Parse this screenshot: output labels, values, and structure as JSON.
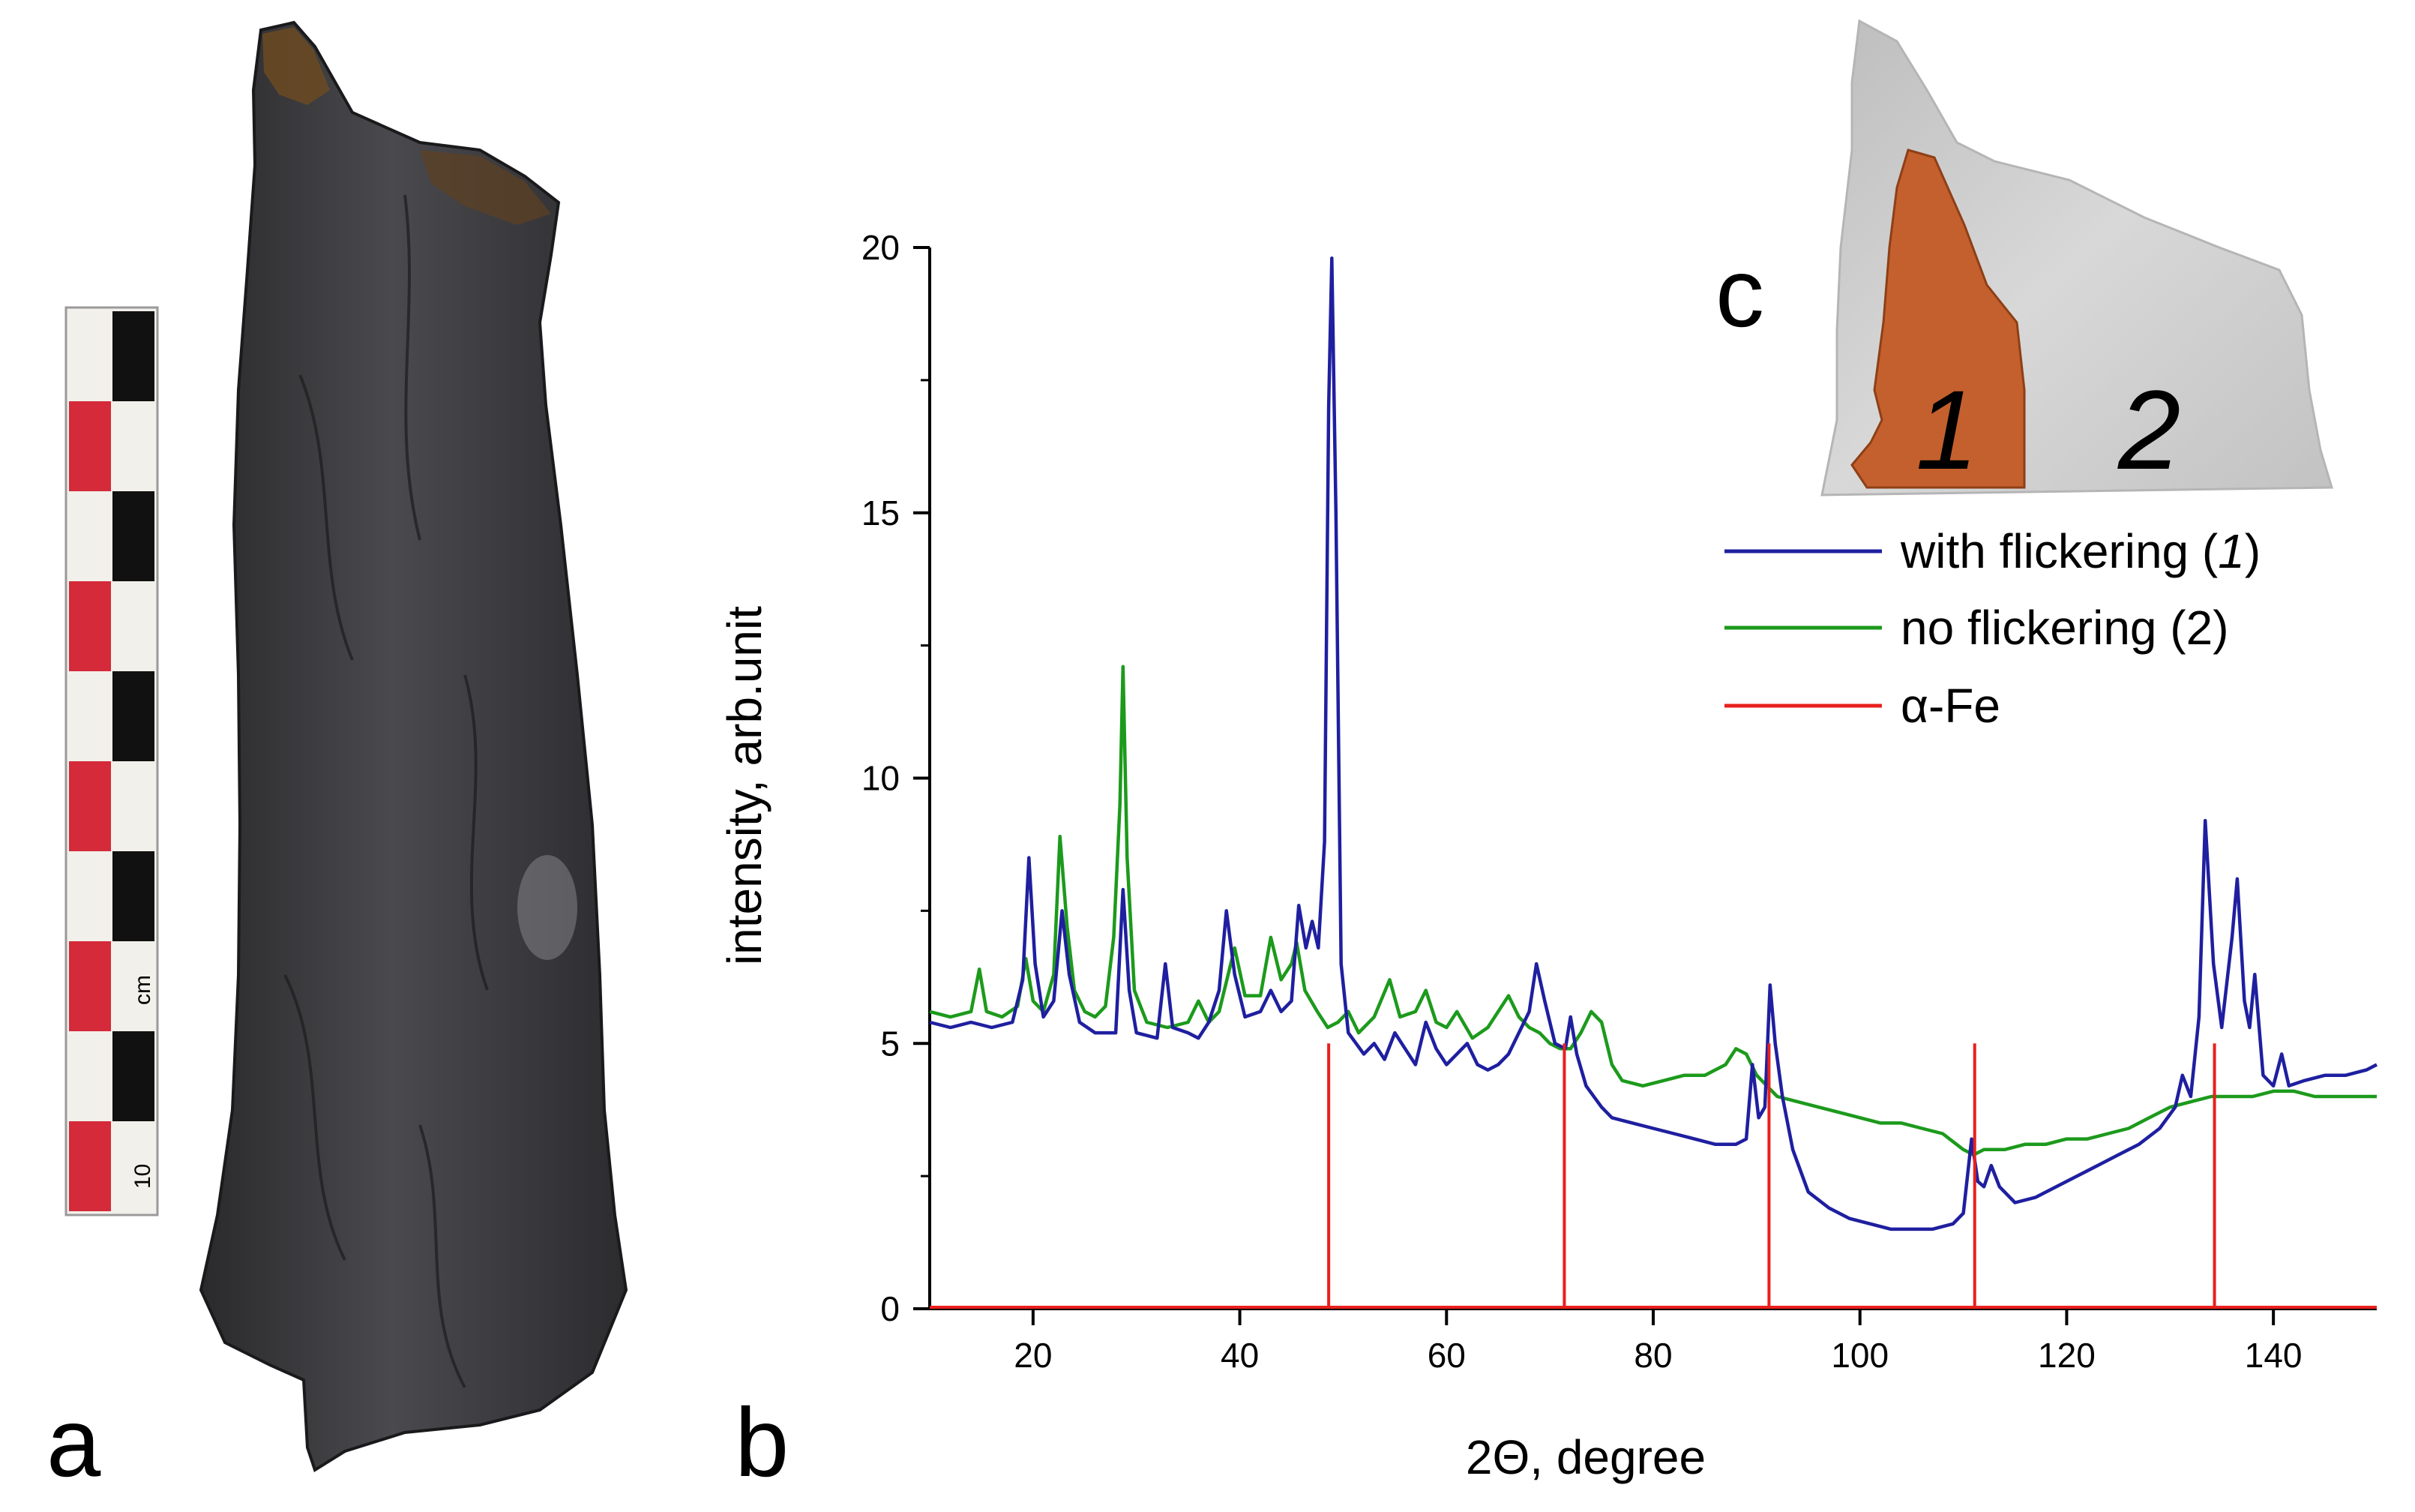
{
  "panels": {
    "a": "a",
    "b": "b",
    "c": "c"
  },
  "ruler": {
    "unit": "cm",
    "mark": "10"
  },
  "inset": {
    "region_1": "1",
    "region_2": "2",
    "region_1_color": "#c4602e",
    "region_2_color": "#c9c9c9"
  },
  "colors": {
    "with_flickering": "#1f1fa0",
    "no_flickering": "#1c9a1c",
    "alpha_fe": "#e8201c"
  },
  "legend": {
    "with_flickering_prefix": "with flickering (",
    "with_flickering_index": "1",
    "with_flickering_suffix": ")",
    "no_flickering": "no flickering (2)",
    "alpha_fe": "α-Fe"
  },
  "chart_data": {
    "type": "line",
    "xlabel": "2Θ, degree",
    "ylabel": "intensity, arb.unit",
    "xlim": [
      10,
      150
    ],
    "ylim": [
      0,
      20
    ],
    "x_ticks": [
      20,
      40,
      60,
      80,
      100,
      120,
      140
    ],
    "y_ticks": [
      0,
      5,
      10,
      15,
      20
    ],
    "legend_position": "top-right",
    "series": [
      {
        "name": "with flickering (1)",
        "points": [
          [
            10,
            5.4
          ],
          [
            12,
            5.3
          ],
          [
            14,
            5.4
          ],
          [
            16,
            5.3
          ],
          [
            18,
            5.4
          ],
          [
            19,
            6.2
          ],
          [
            19.6,
            8.5
          ],
          [
            20.2,
            6.5
          ],
          [
            21,
            5.5
          ],
          [
            22,
            5.8
          ],
          [
            22.8,
            7.5
          ],
          [
            23.5,
            6.3
          ],
          [
            24.5,
            5.4
          ],
          [
            26,
            5.2
          ],
          [
            28,
            5.2
          ],
          [
            28.7,
            7.9
          ],
          [
            29.3,
            6.0
          ],
          [
            30,
            5.2
          ],
          [
            32,
            5.1
          ],
          [
            32.8,
            6.5
          ],
          [
            33.5,
            5.3
          ],
          [
            35,
            5.2
          ],
          [
            36,
            5.1
          ],
          [
            37,
            5.4
          ],
          [
            38,
            6.0
          ],
          [
            38.7,
            7.5
          ],
          [
            39.5,
            6.3
          ],
          [
            40.5,
            5.5
          ],
          [
            42,
            5.6
          ],
          [
            43,
            6.0
          ],
          [
            44,
            5.6
          ],
          [
            45,
            5.8
          ],
          [
            45.7,
            7.6
          ],
          [
            46.4,
            6.8
          ],
          [
            47,
            7.3
          ],
          [
            47.6,
            6.8
          ],
          [
            48.2,
            8.8
          ],
          [
            48.6,
            17.0
          ],
          [
            48.9,
            19.8
          ],
          [
            49.3,
            15.0
          ],
          [
            49.8,
            6.5
          ],
          [
            50.5,
            5.2
          ],
          [
            52,
            4.8
          ],
          [
            53,
            5.0
          ],
          [
            54,
            4.7
          ],
          [
            55,
            5.2
          ],
          [
            56,
            4.9
          ],
          [
            57,
            4.6
          ],
          [
            58,
            5.4
          ],
          [
            59,
            4.9
          ],
          [
            60,
            4.6
          ],
          [
            61,
            4.8
          ],
          [
            62,
            5.0
          ],
          [
            63,
            4.6
          ],
          [
            64,
            4.5
          ],
          [
            65,
            4.6
          ],
          [
            66,
            4.8
          ],
          [
            67,
            5.2
          ],
          [
            68,
            5.6
          ],
          [
            68.7,
            6.5
          ],
          [
            69.5,
            5.8
          ],
          [
            70.5,
            5.0
          ],
          [
            71.5,
            4.9
          ],
          [
            72,
            5.5
          ],
          [
            72.6,
            4.8
          ],
          [
            73.5,
            4.2
          ],
          [
            75,
            3.8
          ],
          [
            76,
            3.6
          ],
          [
            78,
            3.5
          ],
          [
            80,
            3.4
          ],
          [
            82,
            3.3
          ],
          [
            84,
            3.2
          ],
          [
            86,
            3.1
          ],
          [
            88,
            3.1
          ],
          [
            89,
            3.2
          ],
          [
            89.6,
            4.6
          ],
          [
            90.2,
            3.6
          ],
          [
            90.8,
            3.8
          ],
          [
            91.3,
            6.1
          ],
          [
            91.8,
            5.0
          ],
          [
            92.5,
            4.0
          ],
          [
            93.5,
            3.0
          ],
          [
            95,
            2.2
          ],
          [
            97,
            1.9
          ],
          [
            99,
            1.7
          ],
          [
            101,
            1.6
          ],
          [
            103,
            1.5
          ],
          [
            105,
            1.5
          ],
          [
            107,
            1.5
          ],
          [
            109,
            1.6
          ],
          [
            110,
            1.8
          ],
          [
            110.8,
            3.2
          ],
          [
            111.4,
            2.4
          ],
          [
            112,
            2.3
          ],
          [
            112.7,
            2.7
          ],
          [
            113.5,
            2.3
          ],
          [
            115,
            2.0
          ],
          [
            117,
            2.1
          ],
          [
            119,
            2.3
          ],
          [
            121,
            2.5
          ],
          [
            123,
            2.7
          ],
          [
            125,
            2.9
          ],
          [
            127,
            3.1
          ],
          [
            129,
            3.4
          ],
          [
            130.5,
            3.8
          ],
          [
            131.2,
            4.4
          ],
          [
            132,
            4.0
          ],
          [
            132.8,
            5.5
          ],
          [
            133.4,
            9.2
          ],
          [
            134.2,
            6.5
          ],
          [
            135,
            5.3
          ],
          [
            136,
            7.0
          ],
          [
            136.5,
            8.1
          ],
          [
            137.2,
            5.8
          ],
          [
            137.7,
            5.3
          ],
          [
            138.2,
            6.3
          ],
          [
            139,
            4.4
          ],
          [
            140,
            4.2
          ],
          [
            140.8,
            4.8
          ],
          [
            141.5,
            4.2
          ],
          [
            143,
            4.3
          ],
          [
            145,
            4.4
          ],
          [
            147,
            4.4
          ],
          [
            149,
            4.5
          ],
          [
            150,
            4.6
          ]
        ]
      },
      {
        "name": "no flickering (2)",
        "points": [
          [
            10,
            5.6
          ],
          [
            12,
            5.5
          ],
          [
            14,
            5.6
          ],
          [
            14.8,
            6.4
          ],
          [
            15.5,
            5.6
          ],
          [
            17,
            5.5
          ],
          [
            18.5,
            5.7
          ],
          [
            19.3,
            6.6
          ],
          [
            20,
            5.8
          ],
          [
            21,
            5.6
          ],
          [
            22,
            6.3
          ],
          [
            22.6,
            8.9
          ],
          [
            23.3,
            7.2
          ],
          [
            24,
            6.0
          ],
          [
            25,
            5.6
          ],
          [
            26,
            5.5
          ],
          [
            27,
            5.7
          ],
          [
            27.8,
            7.0
          ],
          [
            28.4,
            9.5
          ],
          [
            28.7,
            12.1
          ],
          [
            29.1,
            8.5
          ],
          [
            29.8,
            6.0
          ],
          [
            31,
            5.4
          ],
          [
            33,
            5.3
          ],
          [
            35,
            5.4
          ],
          [
            36,
            5.8
          ],
          [
            37,
            5.4
          ],
          [
            38,
            5.6
          ],
          [
            39.5,
            6.8
          ],
          [
            40.5,
            5.9
          ],
          [
            42,
            5.9
          ],
          [
            43,
            7.0
          ],
          [
            44,
            6.2
          ],
          [
            45,
            6.5
          ],
          [
            45.5,
            6.9
          ],
          [
            46.3,
            6.0
          ],
          [
            47.5,
            5.6
          ],
          [
            48.5,
            5.3
          ],
          [
            49.5,
            5.4
          ],
          [
            50.5,
            5.6
          ],
          [
            51.5,
            5.2
          ],
          [
            53,
            5.5
          ],
          [
            54.5,
            6.2
          ],
          [
            55.5,
            5.5
          ],
          [
            57,
            5.6
          ],
          [
            58,
            6.0
          ],
          [
            59,
            5.4
          ],
          [
            60,
            5.3
          ],
          [
            61,
            5.6
          ],
          [
            62.5,
            5.1
          ],
          [
            64,
            5.3
          ],
          [
            65,
            5.6
          ],
          [
            66,
            5.9
          ],
          [
            67,
            5.5
          ],
          [
            68,
            5.3
          ],
          [
            69,
            5.2
          ],
          [
            70,
            5.0
          ],
          [
            71,
            4.9
          ],
          [
            72,
            4.9
          ],
          [
            73,
            5.2
          ],
          [
            74,
            5.6
          ],
          [
            75,
            5.4
          ],
          [
            76,
            4.6
          ],
          [
            77,
            4.3
          ],
          [
            79,
            4.2
          ],
          [
            81,
            4.3
          ],
          [
            83,
            4.4
          ],
          [
            85,
            4.4
          ],
          [
            87,
            4.6
          ],
          [
            88,
            4.9
          ],
          [
            89,
            4.8
          ],
          [
            90,
            4.4
          ],
          [
            91,
            4.2
          ],
          [
            92,
            4.0
          ],
          [
            94,
            3.9
          ],
          [
            96,
            3.8
          ],
          [
            98,
            3.7
          ],
          [
            100,
            3.6
          ],
          [
            102,
            3.5
          ],
          [
            104,
            3.5
          ],
          [
            106,
            3.4
          ],
          [
            108,
            3.3
          ],
          [
            110,
            3.0
          ],
          [
            111,
            2.9
          ],
          [
            112,
            3.0
          ],
          [
            114,
            3.0
          ],
          [
            116,
            3.1
          ],
          [
            118,
            3.1
          ],
          [
            120,
            3.2
          ],
          [
            122,
            3.2
          ],
          [
            124,
            3.3
          ],
          [
            126,
            3.4
          ],
          [
            128,
            3.6
          ],
          [
            130,
            3.8
          ],
          [
            132,
            3.9
          ],
          [
            134,
            4.0
          ],
          [
            136,
            4.0
          ],
          [
            138,
            4.0
          ],
          [
            140,
            4.1
          ],
          [
            142,
            4.1
          ],
          [
            144,
            4.0
          ],
          [
            146,
            4.0
          ],
          [
            148,
            4.0
          ],
          [
            150,
            4.0
          ]
        ]
      },
      {
        "name": "α-Fe",
        "sticks": [
          [
            48.6,
            5
          ],
          [
            71.4,
            5
          ],
          [
            91.2,
            5
          ],
          [
            111.1,
            5
          ],
          [
            134.3,
            5
          ]
        ]
      }
    ]
  }
}
